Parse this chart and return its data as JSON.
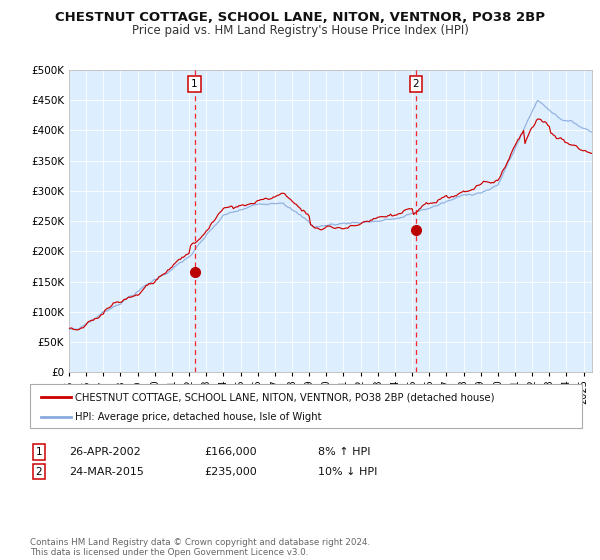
{
  "title": "CHESTNUT COTTAGE, SCHOOL LANE, NITON, VENTNOR, PO38 2BP",
  "subtitle": "Price paid vs. HM Land Registry's House Price Index (HPI)",
  "background_color": "#ffffff",
  "plot_bg_color": "#ddeeff",
  "xmin": 1995.0,
  "xmax": 2025.5,
  "ymin": 0,
  "ymax": 500000,
  "yticks": [
    0,
    50000,
    100000,
    150000,
    200000,
    250000,
    300000,
    350000,
    400000,
    450000,
    500000
  ],
  "ytick_labels": [
    "£0",
    "£50K",
    "£100K",
    "£150K",
    "£200K",
    "£250K",
    "£300K",
    "£350K",
    "£400K",
    "£450K",
    "£500K"
  ],
  "xtick_years": [
    1995,
    1996,
    1997,
    1998,
    1999,
    2000,
    2001,
    2002,
    2003,
    2004,
    2005,
    2006,
    2007,
    2008,
    2009,
    2010,
    2011,
    2012,
    2013,
    2014,
    2015,
    2016,
    2017,
    2018,
    2019,
    2020,
    2021,
    2022,
    2023,
    2024,
    2025
  ],
  "sale1_x": 2002.32,
  "sale1_y": 166000,
  "sale2_x": 2015.23,
  "sale2_y": 235000,
  "legend_color1": "#cc0000",
  "legend_color2": "#88aadd",
  "legend_line1": "CHESTNUT COTTAGE, SCHOOL LANE, NITON, VENTNOR, PO38 2BP (detached house)",
  "legend_line2": "HPI: Average price, detached house, Isle of Wight",
  "note1_label": "1",
  "note1_date": "26-APR-2002",
  "note1_price": "£166,000",
  "note1_hpi": "8% ↑ HPI",
  "note2_label": "2",
  "note2_date": "24-MAR-2015",
  "note2_price": "£235,000",
  "note2_hpi": "10% ↓ HPI",
  "footer": "Contains HM Land Registry data © Crown copyright and database right 2024.\nThis data is licensed under the Open Government Licence v3.0."
}
